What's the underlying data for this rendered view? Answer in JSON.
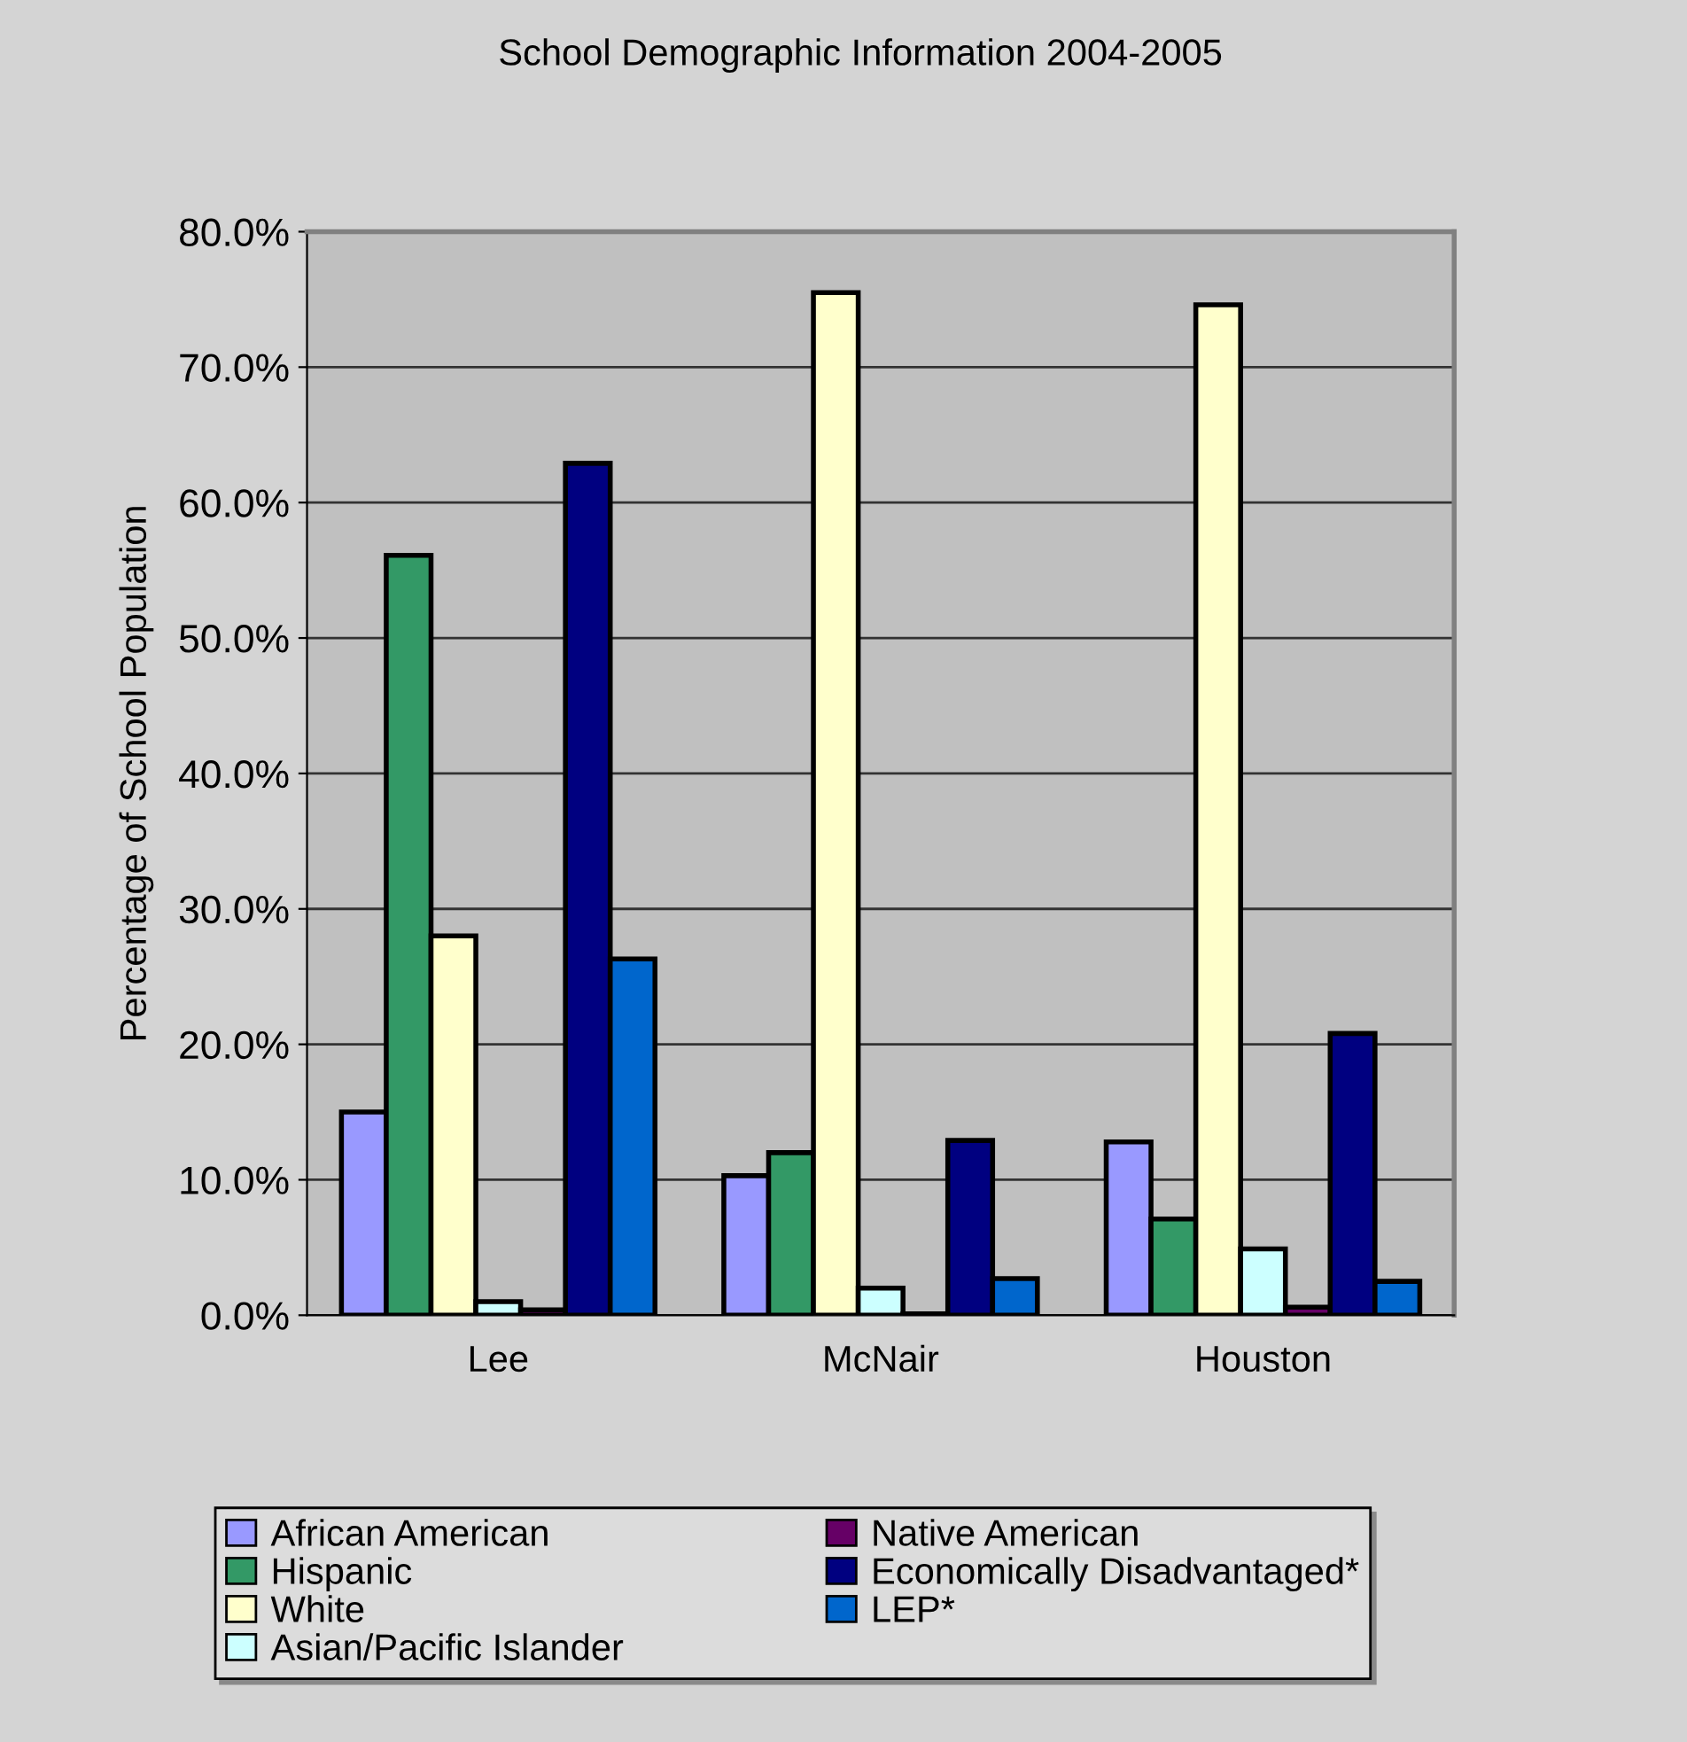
{
  "chart_data": {
    "type": "bar",
    "title": "School Demographic Information 2004-2005",
    "ylabel": "Percentage of School Population",
    "categories": [
      "Lee",
      "McNair",
      "Houston"
    ],
    "series": [
      {
        "name": "African American",
        "color": "#9999ff",
        "values": [
          15.0,
          10.3,
          12.8
        ]
      },
      {
        "name": "Hispanic",
        "color": "#339966",
        "values": [
          56.1,
          12.0,
          7.1
        ]
      },
      {
        "name": "White",
        "color": "#ffffcc",
        "values": [
          28.0,
          75.5,
          74.6
        ]
      },
      {
        "name": "Asian/Pacific Islander",
        "color": "#ccffff",
        "values": [
          1.0,
          2.0,
          4.9
        ]
      },
      {
        "name": "Native American",
        "color": "#660066",
        "values": [
          0.4,
          0.1,
          0.6
        ]
      },
      {
        "name": "Economically Disadvantaged*",
        "color": "#000080",
        "values": [
          62.9,
          12.9,
          20.8
        ]
      },
      {
        "name": "LEP*",
        "color": "#0066cc",
        "values": [
          26.3,
          2.7,
          2.5
        ]
      }
    ],
    "ylim": [
      0,
      80
    ],
    "yticks": [
      {
        "value": 0,
        "label": "0.0%"
      },
      {
        "value": 10,
        "label": "10.0%"
      },
      {
        "value": 20,
        "label": "20.0%"
      },
      {
        "value": 30,
        "label": "30.0%"
      },
      {
        "value": 40,
        "label": "40.0%"
      },
      {
        "value": 50,
        "label": "50.0%"
      },
      {
        "value": 60,
        "label": "60.0%"
      },
      {
        "value": 70,
        "label": "70.0%"
      },
      {
        "value": 80,
        "label": "80.0%"
      }
    ],
    "grid": "y",
    "legend": "bottom"
  }
}
